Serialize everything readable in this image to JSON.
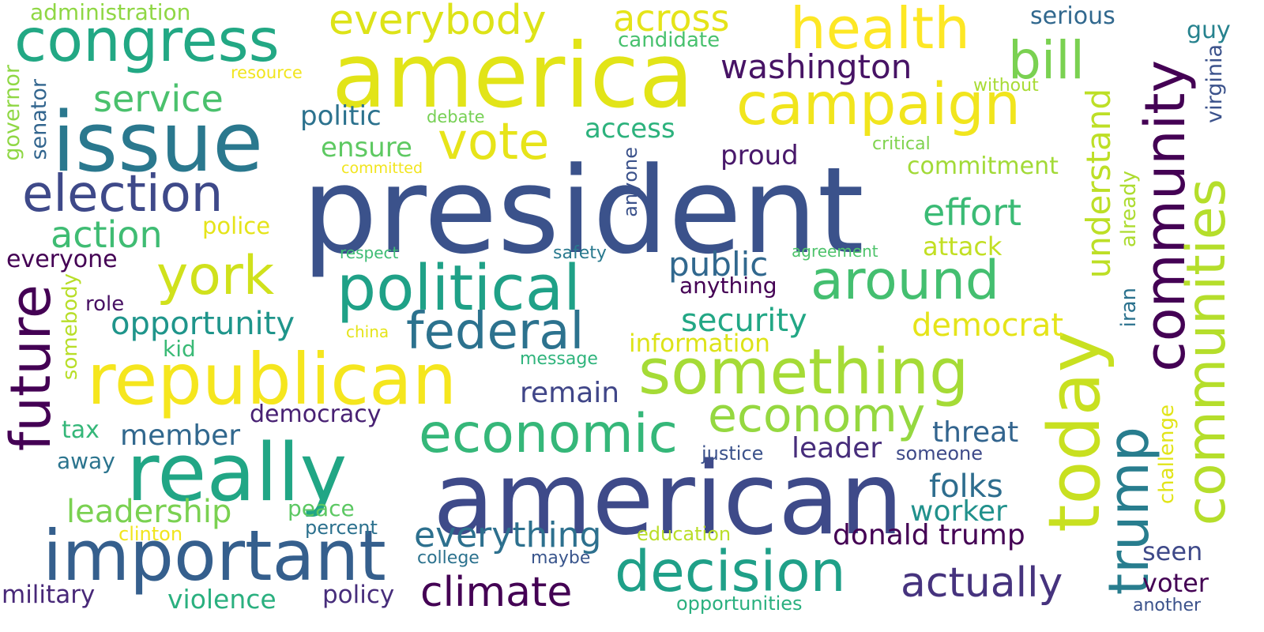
{
  "words": [
    {
      "text": "president",
      "color": "#3b528b"
    },
    {
      "text": "american",
      "color": "#3e4a89"
    },
    {
      "text": "america",
      "color": "#e2e418"
    },
    {
      "text": "issue",
      "color": "#2a788e"
    },
    {
      "text": "really",
      "color": "#21a685"
    },
    {
      "text": "republican",
      "color": "#f5e61e"
    },
    {
      "text": "important",
      "color": "#355f8d"
    },
    {
      "text": "political",
      "color": "#1fa187"
    },
    {
      "text": "something",
      "color": "#a5db36"
    },
    {
      "text": "congress",
      "color": "#22a884"
    },
    {
      "text": "campaign",
      "color": "#f1e51d"
    },
    {
      "text": "health",
      "color": "#fde725"
    },
    {
      "text": "today",
      "color": "#c8e020"
    },
    {
      "text": "decision",
      "color": "#1fa088"
    },
    {
      "text": "economic",
      "color": "#35b779"
    },
    {
      "text": "community",
      "color": "#440154"
    },
    {
      "text": "communities",
      "color": "#b5de2b"
    },
    {
      "text": "around",
      "color": "#44bf70"
    },
    {
      "text": "election",
      "color": "#3e4989"
    },
    {
      "text": "future",
      "color": "#440154"
    },
    {
      "text": "york",
      "color": "#d0e11c"
    },
    {
      "text": "federal",
      "color": "#2c728e"
    },
    {
      "text": "vote",
      "color": "#e7e419"
    },
    {
      "text": "economy",
      "color": "#95d840"
    },
    {
      "text": "trump",
      "color": "#287d8e"
    },
    {
      "text": "climate",
      "color": "#440154"
    },
    {
      "text": "actually",
      "color": "#46337e"
    },
    {
      "text": "everybody",
      "color": "#dde318"
    },
    {
      "text": "bill",
      "color": "#7ad151"
    },
    {
      "text": "across",
      "color": "#e5e419"
    },
    {
      "text": "understand",
      "color": "#bddf26"
    },
    {
      "text": "action",
      "color": "#3fbc73"
    },
    {
      "text": "service",
      "color": "#4ac16d"
    },
    {
      "text": "washington",
      "color": "#471365"
    },
    {
      "text": "effort",
      "color": "#3bbb75"
    },
    {
      "text": "everything",
      "color": "#2d708e"
    },
    {
      "text": "public",
      "color": "#31688e"
    },
    {
      "text": "opportunity",
      "color": "#1f958b"
    },
    {
      "text": "security",
      "color": "#22a785"
    },
    {
      "text": "democrat",
      "color": "#e5e419"
    },
    {
      "text": "information",
      "color": "#dde318"
    },
    {
      "text": "leadership",
      "color": "#7ad151"
    },
    {
      "text": "donald trump",
      "color": "#440154"
    },
    {
      "text": "threat",
      "color": "#32648e"
    },
    {
      "text": "folks",
      "color": "#2e6d8e"
    },
    {
      "text": "worker",
      "color": "#21918c"
    },
    {
      "text": "remain",
      "color": "#404688"
    },
    {
      "text": "member",
      "color": "#31688e"
    },
    {
      "text": "leader",
      "color": "#472d7b"
    },
    {
      "text": "voter",
      "color": "#440154"
    },
    {
      "text": "violence",
      "color": "#2ab07f"
    },
    {
      "text": "policy",
      "color": "#472d7b"
    },
    {
      "text": "military",
      "color": "#482878"
    },
    {
      "text": "democracy",
      "color": "#482173"
    },
    {
      "text": "commitment",
      "color": "#a2da37"
    },
    {
      "text": "attack",
      "color": "#c2df23"
    },
    {
      "text": "ensure",
      "color": "#5ec962"
    },
    {
      "text": "access",
      "color": "#2db27d"
    },
    {
      "text": "politic",
      "color": "#2c728e"
    },
    {
      "text": "proud",
      "color": "#48186a"
    },
    {
      "text": "everyone",
      "color": "#440154"
    },
    {
      "text": "seen",
      "color": "#3e4989"
    },
    {
      "text": "serious",
      "color": "#31688e"
    },
    {
      "text": "guy",
      "color": "#26828e"
    },
    {
      "text": "administration",
      "color": "#8fd744"
    },
    {
      "text": "candidate",
      "color": "#48c16e"
    },
    {
      "text": "governor",
      "color": "#8fd744"
    },
    {
      "text": "senator",
      "color": "#32658e"
    },
    {
      "text": "virginia",
      "color": "#3b528b"
    },
    {
      "text": "iran",
      "color": "#2c728e"
    },
    {
      "text": "already",
      "color": "#addc30"
    },
    {
      "text": "anyone",
      "color": "#3b528b"
    },
    {
      "text": "somebody",
      "color": "#b8de29"
    },
    {
      "text": "challenge",
      "color": "#e1e418"
    },
    {
      "text": "police",
      "color": "#e5e419"
    },
    {
      "text": "anything",
      "color": "#440154"
    },
    {
      "text": "kid",
      "color": "#3aba76"
    },
    {
      "text": "role",
      "color": "#471063"
    },
    {
      "text": "tax",
      "color": "#35b779"
    },
    {
      "text": "away",
      "color": "#2b748e"
    },
    {
      "text": "peace",
      "color": "#5cc863"
    },
    {
      "text": "percent",
      "color": "#2c718e"
    },
    {
      "text": "clinton",
      "color": "#f1e51d"
    },
    {
      "text": "college",
      "color": "#2c728e"
    },
    {
      "text": "maybe",
      "color": "#39558c"
    },
    {
      "text": "education",
      "color": "#bade28"
    },
    {
      "text": "opportunities",
      "color": "#2ab07f"
    },
    {
      "text": "another",
      "color": "#3b528b"
    },
    {
      "text": "justice",
      "color": "#3b528b"
    },
    {
      "text": "someone",
      "color": "#3e4a89"
    },
    {
      "text": "message",
      "color": "#2fb47c"
    },
    {
      "text": "china",
      "color": "#e5e419"
    },
    {
      "text": "respect",
      "color": "#3dbc74"
    },
    {
      "text": "safety",
      "color": "#29798e"
    },
    {
      "text": "agreement",
      "color": "#4ec36b"
    },
    {
      "text": "critical",
      "color": "#7fd34e"
    },
    {
      "text": "committed",
      "color": "#f1e51d"
    },
    {
      "text": "debate",
      "color": "#76d054"
    },
    {
      "text": "resource",
      "color": "#f1e51d"
    },
    {
      "text": "without",
      "color": "#a8db34"
    }
  ]
}
